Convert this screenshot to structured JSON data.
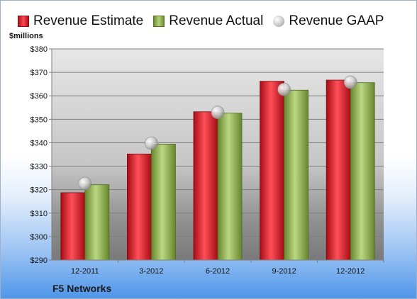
{
  "legend": {
    "estimate": "Revenue Estimate",
    "actual": "Revenue Actual",
    "gaap": "Revenue GAAP"
  },
  "unit_label": "$millions",
  "company": "F5 Networks",
  "colors": {
    "estimate": "#d0202a",
    "actual": "#8fad4a",
    "gaap": "#c8c8c8"
  },
  "chart_data": {
    "type": "bar",
    "categories": [
      "12-2011",
      "3-2012",
      "6-2012",
      "9-2012",
      "12-2012"
    ],
    "series": [
      {
        "name": "Revenue Estimate",
        "type": "bar",
        "values": [
          318.7,
          335.2,
          353.2,
          366.2,
          366.7
        ]
      },
      {
        "name": "Revenue Actual",
        "type": "bar",
        "values": [
          322.1,
          339.4,
          352.6,
          362.4,
          365.6
        ]
      },
      {
        "name": "Revenue GAAP",
        "type": "scatter",
        "values": [
          322.6,
          339.8,
          352.9,
          362.7,
          365.8
        ]
      }
    ],
    "ylim": [
      290,
      380
    ],
    "yticks": [
      290,
      300,
      310,
      320,
      330,
      340,
      350,
      360,
      370,
      380
    ],
    "ytick_labels": [
      "$290",
      "$300",
      "$310",
      "$320",
      "$330",
      "$340",
      "$350",
      "$360",
      "$370",
      "$380"
    ],
    "ylabel": "$millions",
    "grid": true,
    "legend_position": "top"
  }
}
